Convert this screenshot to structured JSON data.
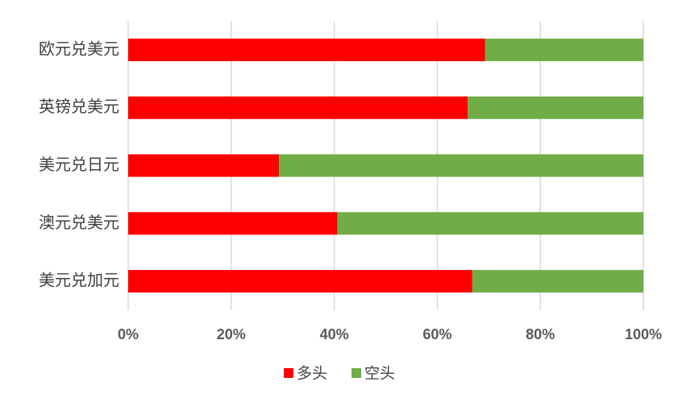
{
  "chart_data": {
    "type": "stacked-bar-horizontal",
    "categories": [
      "欧元兑美元",
      "英镑兑美元",
      "美元兑日元",
      "澳元兑美元",
      "美元兑加元"
    ],
    "series": [
      {
        "name": "多头",
        "color": "#ff0000",
        "values": [
          69.3,
          65.9,
          29.3,
          40.6,
          66.8
        ]
      },
      {
        "name": "空头",
        "color": "#70ad47",
        "values": [
          30.7,
          34.1,
          70.7,
          59.4,
          33.2
        ]
      }
    ],
    "xlim": [
      0,
      100
    ],
    "xticks": [
      {
        "value": 0,
        "label": "0%"
      },
      {
        "value": 20,
        "label": "20%"
      },
      {
        "value": 40,
        "label": "40%"
      },
      {
        "value": 60,
        "label": "60%"
      },
      {
        "value": 80,
        "label": "80%"
      },
      {
        "value": 100,
        "label": "100%"
      }
    ],
    "grid": true,
    "legend": "bottom"
  }
}
